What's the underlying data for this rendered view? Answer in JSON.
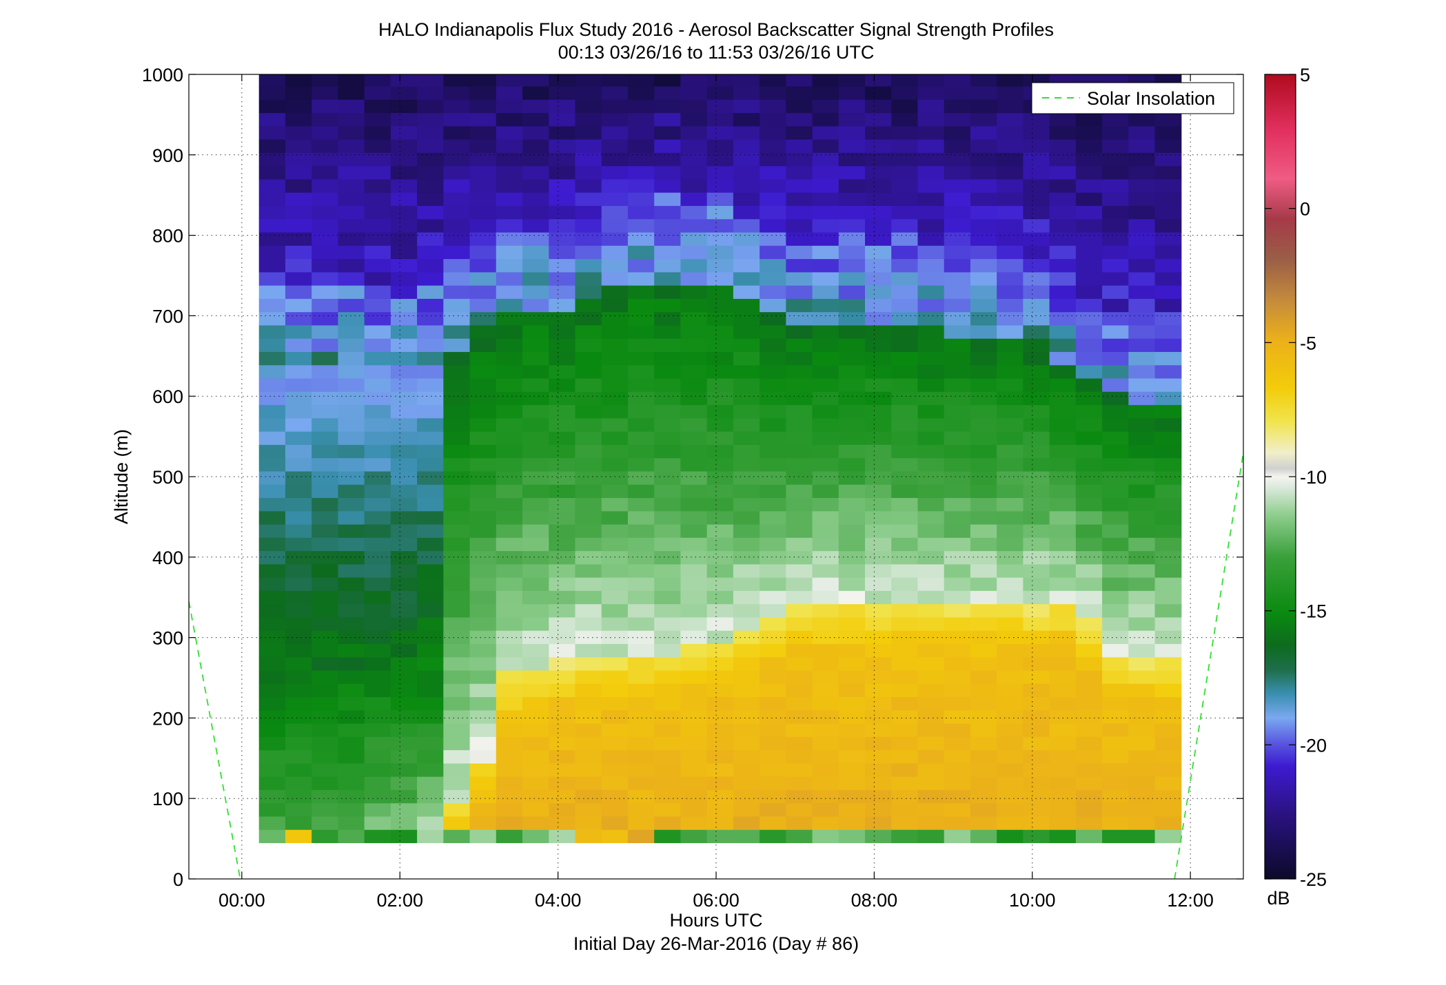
{
  "chart_data": {
    "type": "heatmap",
    "title": "HALO Indianapolis Flux Study 2016 - Aerosol Backscatter Signal Strength Profiles",
    "subtitle": "00:13 03/26/16 to 11:53 03/26/16  UTC",
    "xlabel": "Hours UTC",
    "xlabel2": "Initial Day 26-Mar-2016 (Day # 86)",
    "ylabel": "Altitude (m)",
    "x_range": [
      -0.67,
      12.67
    ],
    "y_range": [
      0,
      1000
    ],
    "x_ticks": [
      0,
      2,
      4,
      6,
      8,
      10,
      12
    ],
    "x_tick_labels": [
      "00:00",
      "02:00",
      "04:00",
      "06:00",
      "08:00",
      "10:00",
      "12:00"
    ],
    "y_ticks": [
      0,
      100,
      200,
      300,
      400,
      500,
      600,
      700,
      800,
      900,
      1000
    ],
    "y_tick_labels": [
      "0",
      "100",
      "200",
      "300",
      "400",
      "500",
      "600",
      "700",
      "800",
      "900",
      "1000"
    ],
    "grid": true,
    "colorbar": {
      "label": "dB",
      "range": [
        -25,
        5
      ],
      "ticks": [
        5,
        0,
        -5,
        -10,
        -15,
        -20,
        -25
      ],
      "tick_labels": [
        "5",
        "0",
        "-5",
        "-10",
        "-15",
        "-20",
        "-25"
      ]
    },
    "legend": {
      "placement": "top-right",
      "entries": [
        {
          "label": "Solar Insolation",
          "color": "#33dd33",
          "style": "dashed"
        }
      ]
    },
    "heatmap": {
      "x_start_hours": 0.2167,
      "x_end_hours": 11.8833,
      "n_cols": 35,
      "y_start_m": 45,
      "y_step_m": 16.5,
      "n_rows": 58
    },
    "boundary_layer_profile": {
      "hours": [
        0.2,
        1.0,
        2.0,
        3.0,
        3.3,
        4.0,
        5.0,
        6.0,
        7.0,
        8.0,
        9.0,
        10.0,
        10.5,
        11.0,
        11.9
      ],
      "mixing_height_m": [
        0,
        0,
        0,
        130,
        250,
        270,
        280,
        290,
        340,
        340,
        340,
        340,
        350,
        280,
        270
      ],
      "residual_layer_top_m": [
        640,
        640,
        620,
        680,
        700,
        710,
        740,
        740,
        690,
        690,
        680,
        670,
        630,
        600,
        590
      ]
    },
    "solar_insolation": {
      "x_hours": [
        -0.67,
        -0.02,
        11.8,
        12.67
      ],
      "y_m": [
        345,
        0,
        0,
        530
      ]
    }
  }
}
